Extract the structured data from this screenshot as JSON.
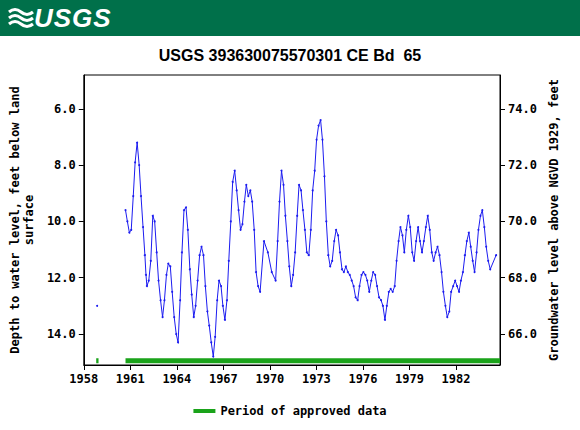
{
  "header": {
    "logo": "USGS"
  },
  "chart_data": {
    "type": "line",
    "title": "USGS 393630075570301 CE Bd  65",
    "y_label": "Depth to water level, feet below land\nsurface",
    "y2_label": "Groundwater level above NGVD 1929, feet",
    "xlim": [
      1958,
      1984.84
    ],
    "xticks": [
      1958,
      1961,
      1964,
      1967,
      1970,
      1973,
      1976,
      1979,
      1982
    ],
    "ylim": [
      15.1,
      4.8
    ],
    "yticks": [
      {
        "value": 6,
        "label": "6.0"
      },
      {
        "value": 8,
        "label": "8.0"
      },
      {
        "value": 10,
        "label": "10.0"
      },
      {
        "value": 12,
        "label": "12.0"
      },
      {
        "value": 14,
        "label": "14.0"
      }
    ],
    "y2lim": [
      64.9,
      75.2
    ],
    "y2ticks": [
      {
        "value": 66,
        "label": "66.0"
      },
      {
        "value": 68,
        "label": "68.0"
      },
      {
        "value": 70,
        "label": "70.0"
      },
      {
        "value": 72,
        "label": "72.0"
      },
      {
        "value": 74,
        "label": "74.0"
      }
    ],
    "grid": false,
    "legend": "bottom",
    "series": [
      {
        "color": "#1c1cf0",
        "marker": "circle",
        "line_style": "solid",
        "x": [
          1958.86,
          1959.8,
          1960.69,
          1960.81,
          1960.94,
          1961.06,
          1961.19,
          1961.31,
          1961.44,
          1961.57,
          1961.69,
          1961.82,
          1961.94,
          1962.01,
          1962.07,
          1962.19,
          1962.32,
          1962.45,
          1962.57,
          1962.7,
          1962.82,
          1962.95,
          1963.08,
          1963.2,
          1963.33,
          1963.45,
          1963.58,
          1963.7,
          1963.83,
          1963.96,
          1964.08,
          1964.21,
          1964.33,
          1964.46,
          1964.59,
          1964.71,
          1964.84,
          1964.96,
          1965.09,
          1965.21,
          1965.34,
          1965.47,
          1965.59,
          1965.72,
          1965.84,
          1965.97,
          1966.09,
          1966.22,
          1966.35,
          1966.47,
          1966.6,
          1966.72,
          1966.85,
          1966.97,
          1967.1,
          1967.23,
          1967.35,
          1967.48,
          1967.6,
          1967.73,
          1967.86,
          1967.98,
          1968.11,
          1968.23,
          1968.36,
          1968.48,
          1968.61,
          1968.74,
          1968.86,
          1968.99,
          1969.11,
          1969.24,
          1969.37,
          1969.62,
          1969.87,
          1970.12,
          1970.37,
          1970.5,
          1970.62,
          1970.75,
          1970.88,
          1971.0,
          1971.13,
          1971.25,
          1971.38,
          1971.5,
          1971.63,
          1971.76,
          1971.88,
          1972.01,
          1972.13,
          1972.26,
          1972.38,
          1972.51,
          1972.64,
          1972.76,
          1972.89,
          1973.01,
          1973.14,
          1973.27,
          1973.39,
          1973.52,
          1973.64,
          1973.77,
          1973.89,
          1974.02,
          1974.15,
          1974.27,
          1974.4,
          1974.52,
          1974.65,
          1974.77,
          1974.9,
          1975.03,
          1975.15,
          1975.28,
          1975.4,
          1975.53,
          1975.66,
          1975.78,
          1975.91,
          1976.03,
          1976.16,
          1976.28,
          1976.41,
          1976.54,
          1976.66,
          1976.79,
          1976.91,
          1977.04,
          1977.17,
          1977.29,
          1977.42,
          1977.54,
          1977.67,
          1977.79,
          1977.92,
          1978.05,
          1978.17,
          1978.3,
          1978.42,
          1978.55,
          1978.67,
          1978.8,
          1978.93,
          1979.05,
          1979.18,
          1979.3,
          1979.43,
          1979.56,
          1979.68,
          1979.81,
          1979.93,
          1980.06,
          1980.18,
          1980.31,
          1980.44,
          1980.56,
          1980.69,
          1980.81,
          1980.94,
          1981.07,
          1981.19,
          1981.32,
          1981.44,
          1981.57,
          1981.69,
          1981.82,
          1981.95,
          1982.07,
          1982.2,
          1982.32,
          1982.45,
          1982.58,
          1982.7,
          1982.83,
          1982.95,
          1983.08,
          1983.2,
          1983.33,
          1983.45,
          1983.58,
          1983.7,
          1983.83,
          1983.95,
          1984.08,
          1984.21,
          1984.59
        ],
        "values": [
          13.0,
          null,
          9.6,
          10.0,
          10.4,
          10.3,
          9.1,
          7.9,
          7.2,
          8.0,
          9.1,
          10.2,
          11.2,
          11.9,
          12.3,
          12.1,
          11.4,
          9.8,
          10.0,
          11.1,
          12.1,
          12.8,
          13.4,
          12.8,
          11.9,
          11.5,
          11.6,
          12.5,
          13.4,
          14.0,
          14.3,
          12.8,
          11.1,
          9.6,
          9.5,
          10.3,
          11.7,
          12.6,
          13.4,
          13.0,
          12.1,
          11.2,
          10.9,
          11.2,
          12.3,
          13.2,
          13.7,
          14.3,
          14.8,
          14.1,
          12.8,
          12.1,
          12.3,
          13.0,
          13.5,
          12.8,
          11.4,
          10.0,
          8.6,
          8.2,
          8.9,
          9.6,
          10.3,
          10.1,
          9.3,
          8.7,
          9.1,
          8.9,
          9.3,
          10.3,
          11.8,
          12.3,
          12.5,
          10.7,
          11.1,
          11.8,
          12.1,
          10.7,
          9.3,
          8.2,
          8.7,
          9.8,
          10.7,
          11.6,
          12.3,
          11.9,
          11.1,
          9.8,
          8.7,
          8.9,
          9.6,
          10.3,
          11.1,
          11.2,
          10.3,
          8.9,
          8.2,
          7.1,
          6.6,
          6.4,
          7.1,
          8.4,
          10.0,
          11.2,
          11.6,
          11.4,
          10.7,
          10.3,
          10.5,
          11.1,
          11.7,
          11.8,
          11.6,
          11.8,
          11.9,
          12.1,
          12.3,
          12.7,
          12.8,
          12.3,
          11.9,
          11.8,
          11.9,
          12.1,
          12.5,
          12.1,
          11.8,
          11.9,
          12.3,
          12.7,
          12.8,
          13.0,
          13.5,
          13.0,
          12.5,
          12.4,
          12.5,
          12.3,
          11.4,
          10.7,
          10.2,
          10.5,
          11.1,
          10.3,
          9.8,
          10.2,
          11.1,
          11.4,
          10.7,
          10.2,
          10.7,
          11.1,
          10.7,
          10.2,
          9.8,
          10.3,
          11.1,
          11.4,
          11.1,
          10.9,
          11.2,
          11.8,
          12.5,
          13.0,
          13.4,
          13.2,
          12.5,
          12.3,
          12.1,
          12.3,
          12.5,
          12.1,
          11.8,
          11.2,
          10.7,
          10.4,
          10.9,
          11.4,
          11.8,
          11.1,
          10.3,
          9.8,
          9.6,
          10.2,
          10.9,
          11.4,
          11.7,
          11.2
        ]
      },
      {
        "name": "Period of approved data",
        "color": "#1aa31a",
        "line_style": "solid",
        "x": [
          1958.8,
          1958.95,
          1959.5,
          1960.69,
          1984.84
        ],
        "values": [
          14.95,
          14.95,
          null,
          14.95,
          14.95
        ]
      }
    ]
  }
}
